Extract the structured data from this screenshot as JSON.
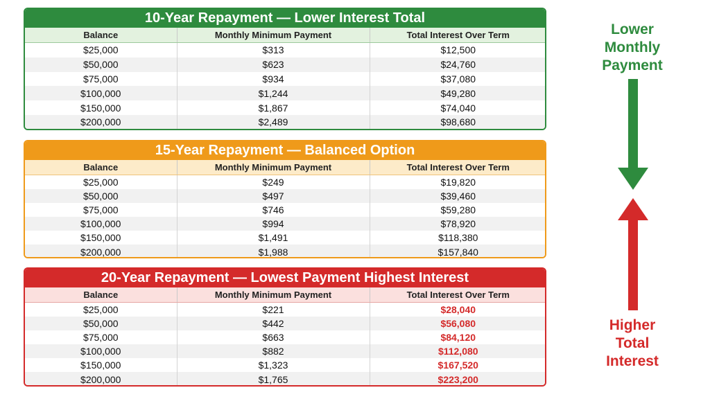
{
  "headers": [
    "Balance",
    "Monthly Minimum Payment",
    "Total Interest Over Term"
  ],
  "panels": [
    {
      "title": "10-Year Repayment — Lower Interest Total",
      "color": "#2e8b3e",
      "rows": [
        [
          "$25,000",
          "$313",
          "$12,500"
        ],
        [
          "$50,000",
          "$623",
          "$24,760"
        ],
        [
          "$75,000",
          "$934",
          "$37,080"
        ],
        [
          "$100,000",
          "$1,244",
          "$49,280"
        ],
        [
          "$150,000",
          "$1,867",
          "$74,040"
        ],
        [
          "$200,000",
          "$2,489",
          "$98,680"
        ]
      ]
    },
    {
      "title": "15-Year Repayment — Balanced Option",
      "color": "#ef9a1a",
      "rows": [
        [
          "$25,000",
          "$249",
          "$19,820"
        ],
        [
          "$50,000",
          "$497",
          "$39,460"
        ],
        [
          "$75,000",
          "$746",
          "$59,280"
        ],
        [
          "$100,000",
          "$994",
          "$78,920"
        ],
        [
          "$150,000",
          "$1,491",
          "$118,380"
        ],
        [
          "$200,000",
          "$1,988",
          "$157,840"
        ]
      ]
    },
    {
      "title": "20-Year Repayment — Lowest Payment Highest Interest",
      "color": "#d42a2a",
      "rows": [
        [
          "$25,000",
          "$221",
          "$28,040"
        ],
        [
          "$50,000",
          "$442",
          "$56,080"
        ],
        [
          "$75,000",
          "$663",
          "$84,120"
        ],
        [
          "$100,000",
          "$882",
          "$112,080"
        ],
        [
          "$150,000",
          "$1,323",
          "$167,520"
        ],
        [
          "$200,000",
          "$1,765",
          "$223,200"
        ]
      ]
    }
  ],
  "side": {
    "top_label": [
      "Lower",
      "Monthly",
      "Payment"
    ],
    "bottom_label": [
      "Higher",
      "Total",
      "Interest"
    ],
    "top_color": "#2e8b3e",
    "bottom_color": "#d42a2a",
    "top_arrow_icon": "arrow-down-icon",
    "bottom_arrow_icon": "arrow-up-icon"
  }
}
